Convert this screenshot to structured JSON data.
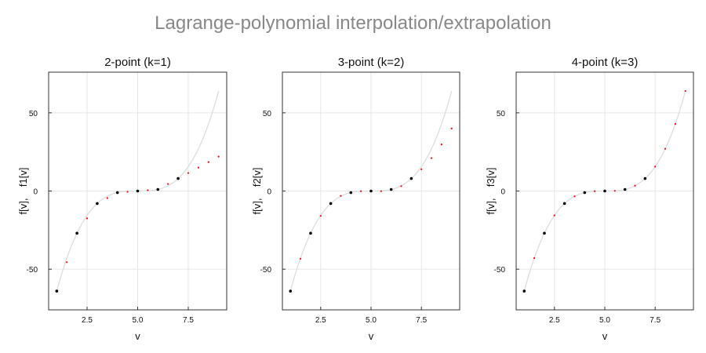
{
  "title": "Lagrange-polynomial interpolation/extrapolation",
  "chart_data": [
    {
      "type": "scatter",
      "title": "2-point (k=1)",
      "xlabel": "v",
      "ylabel": "f[v],    f1[v]",
      "xlim": [
        0.6,
        9.4
      ],
      "ylim": [
        -76,
        76
      ],
      "xticks": [
        "2.5",
        "5.0",
        "7.5"
      ],
      "yticks": [
        "-50",
        "0",
        "50"
      ],
      "grid": true,
      "series": [
        {
          "role": "curve",
          "color": "#dddddd",
          "x": [
            1,
            9
          ],
          "y": [
            -64,
            64
          ]
        },
        {
          "role": "samples",
          "color": "#000000",
          "x": [
            1,
            2,
            3,
            4,
            5,
            6,
            7
          ],
          "y": [
            -64,
            -27,
            -8,
            -1,
            0,
            1,
            8
          ]
        },
        {
          "role": "estimates",
          "color": "#ff0000",
          "x": [
            1.5,
            2.5,
            3.5,
            4.5,
            5.5,
            6.5,
            7.5,
            8,
            8.5,
            9
          ],
          "y": [
            -45.5,
            -17.5,
            -4.5,
            -0.5,
            0.5,
            4.5,
            11.5,
            15,
            18.5,
            22
          ]
        }
      ]
    },
    {
      "type": "scatter",
      "title": "3-point (k=2)",
      "xlabel": "v",
      "ylabel": "f[v],    f2[v]",
      "xlim": [
        0.6,
        9.4
      ],
      "ylim": [
        -76,
        76
      ],
      "xticks": [
        "2.5",
        "5.0",
        "7.5"
      ],
      "yticks": [
        "-50",
        "0",
        "50"
      ],
      "grid": true,
      "series": [
        {
          "role": "curve",
          "color": "#dddddd",
          "x": [
            1,
            9
          ],
          "y": [
            -64,
            64
          ]
        },
        {
          "role": "samples",
          "color": "#000000",
          "x": [
            1,
            2,
            3,
            4,
            5,
            6,
            7
          ],
          "y": [
            -64,
            -27,
            -8,
            -1,
            0,
            1,
            8
          ]
        },
        {
          "role": "estimates",
          "color": "#ff0000",
          "x": [
            1.5,
            2.5,
            3.5,
            4.5,
            5.5,
            6.5,
            7.5,
            8,
            8.5,
            9
          ],
          "y": [
            -43.3,
            -15.9,
            -3.1,
            -0.1,
            -0.1,
            3.1,
            13.9,
            21,
            29.8,
            40
          ]
        }
      ]
    },
    {
      "type": "scatter",
      "title": "4-point (k=3)",
      "xlabel": "v",
      "ylabel": "f[v],    f3[v]",
      "xlim": [
        0.6,
        9.4
      ],
      "ylim": [
        -76,
        76
      ],
      "xticks": [
        "2.5",
        "5.0",
        "7.5"
      ],
      "yticks": [
        "-50",
        "0",
        "50"
      ],
      "grid": true,
      "series": [
        {
          "role": "curve",
          "color": "#dddddd",
          "x": [
            1,
            9
          ],
          "y": [
            -64,
            64
          ]
        },
        {
          "role": "samples",
          "color": "#000000",
          "x": [
            1,
            2,
            3,
            4,
            5,
            6,
            7
          ],
          "y": [
            -64,
            -27,
            -8,
            -1,
            0,
            1,
            8
          ]
        },
        {
          "role": "estimates",
          "color": "#ff0000",
          "x": [
            1.5,
            2.5,
            3.5,
            4.5,
            5.5,
            6.5,
            7.5,
            8,
            8.5,
            9
          ],
          "y": [
            -42.9,
            -15.6,
            -3.4,
            -0.1,
            0.1,
            3.4,
            15.6,
            27,
            42.9,
            64
          ]
        }
      ]
    }
  ]
}
